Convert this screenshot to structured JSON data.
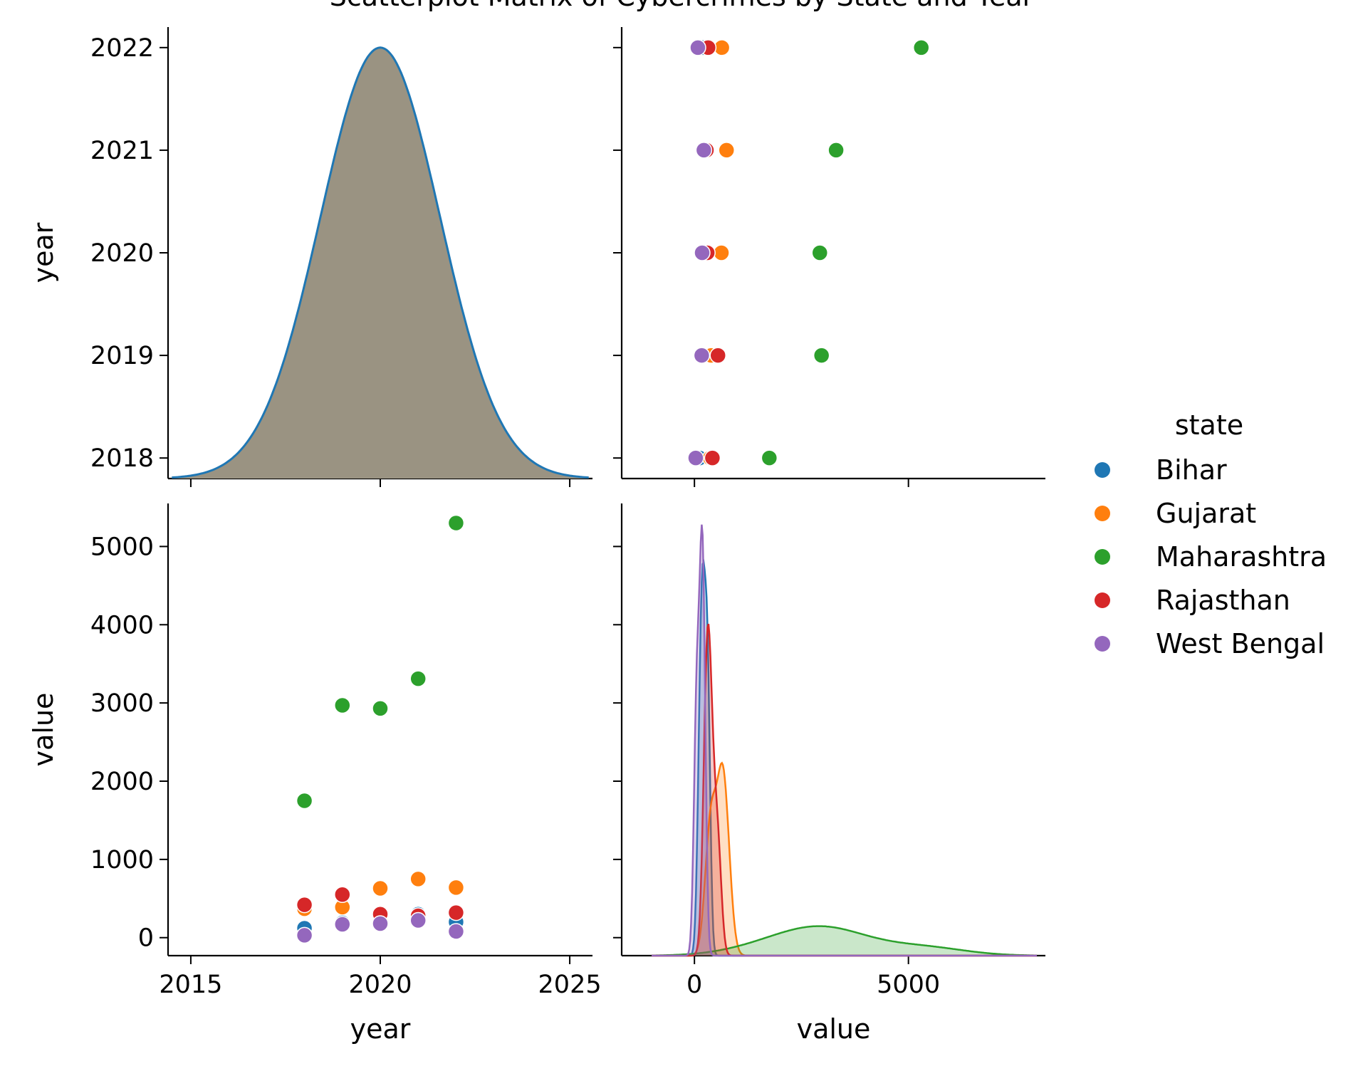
{
  "chart_data": {
    "type": "scatter",
    "title": "Scatterplot Matrix of Cybercrimes by State and Year",
    "variables": [
      "year",
      "value"
    ],
    "hue": "state",
    "legend": {
      "title": "state",
      "placement": "right",
      "entries": [
        {
          "name": "Bihar",
          "color": "#1f77b4"
        },
        {
          "name": "Gujarat",
          "color": "#ff7f0e"
        },
        {
          "name": "Maharashtra",
          "color": "#2ca02c"
        },
        {
          "name": "Rajasthan",
          "color": "#d62728"
        },
        {
          "name": "West Bengal",
          "color": "#9467bd"
        }
      ]
    },
    "axes": {
      "year": {
        "label": "year",
        "range": [
          2014.4,
          2025.6
        ],
        "ticks": [
          2015,
          2020,
          2025
        ],
        "row_ticks": [
          2018,
          2019,
          2020,
          2021,
          2022
        ],
        "row_range": [
          2017.8,
          2022.2
        ]
      },
      "value": {
        "label": "value",
        "range": [
          -1700,
          8200
        ],
        "ticks": [
          0,
          5000
        ],
        "row_ticks": [
          0,
          1000,
          2000,
          3000,
          4000,
          5000
        ],
        "row_range": [
          -230,
          5550
        ]
      }
    },
    "series": [
      {
        "name": "Bihar",
        "x": [
          2018,
          2019,
          2020,
          2021,
          2022
        ],
        "values": [
          120,
          190,
          310,
          300,
          200
        ]
      },
      {
        "name": "Gujarat",
        "x": [
          2018,
          2019,
          2020,
          2021,
          2022
        ],
        "values": [
          370,
          390,
          630,
          750,
          640
        ]
      },
      {
        "name": "Maharashtra",
        "x": [
          2018,
          2019,
          2020,
          2021,
          2022
        ],
        "values": [
          1750,
          2970,
          2930,
          3310,
          5300
        ]
      },
      {
        "name": "Rajasthan",
        "x": [
          2018,
          2019,
          2020,
          2021,
          2022
        ],
        "values": [
          420,
          550,
          300,
          280,
          320
        ]
      },
      {
        "name": "West Bengal",
        "x": [
          2018,
          2019,
          2020,
          2021,
          2022
        ],
        "values": [
          30,
          170,
          180,
          220,
          80
        ]
      }
    ],
    "kde_year": {
      "mean": 2020,
      "sd": 1.58,
      "color": "#1f77b4",
      "fill": "#9a9382"
    }
  }
}
